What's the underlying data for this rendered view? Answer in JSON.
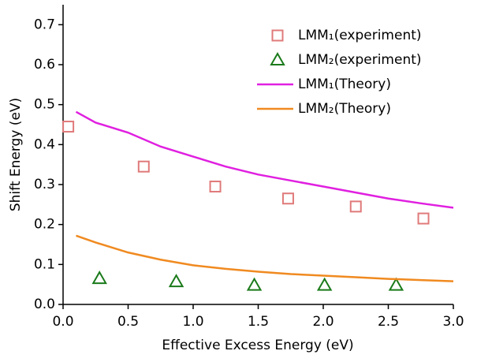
{
  "chart_data": {
    "type": "scatter",
    "xlabel": "Effective Excess Energy (eV)",
    "ylabel": "Shift Energy (eV)",
    "xlim": [
      0,
      3
    ],
    "ylim": [
      0,
      0.75
    ],
    "xticks": [
      {
        "value": 0,
        "label": "0.0"
      },
      0.5,
      {
        "value": 1,
        "label": "1.0"
      },
      1.5,
      {
        "value": 2,
        "label": "2.0"
      },
      2.5,
      {
        "value": 3,
        "label": "3.0"
      }
    ],
    "yticks": [
      {
        "value": 0,
        "label": "0.0"
      },
      0.1,
      0.2,
      0.3,
      0.4,
      0.5,
      0.6,
      0.7
    ],
    "legend": "upper right",
    "series": [
      {
        "name": "LMM₁(experiment)",
        "style": "marker",
        "marker": "square",
        "color": "#e07a7a",
        "x": [
          0.04,
          0.62,
          1.17,
          1.73,
          2.25,
          2.77
        ],
        "values": [
          0.445,
          0.345,
          0.295,
          0.265,
          0.245,
          0.215
        ]
      },
      {
        "name": "LMM₂(experiment)",
        "style": "marker",
        "marker": "triangle",
        "color": "#1a7a1a",
        "x": [
          0.28,
          0.87,
          1.47,
          2.01,
          2.56
        ],
        "values": [
          0.065,
          0.057,
          0.048,
          0.048,
          0.048
        ]
      },
      {
        "name": "LMM₁(Theory)",
        "style": "line",
        "color": "#e020e0",
        "x": [
          0.1,
          0.25,
          0.5,
          0.75,
          1.0,
          1.25,
          1.5,
          1.75,
          2.0,
          2.25,
          2.5,
          2.75,
          3.0
        ],
        "values": [
          0.482,
          0.455,
          0.43,
          0.395,
          0.37,
          0.345,
          0.325,
          0.31,
          0.295,
          0.28,
          0.265,
          0.253,
          0.242
        ]
      },
      {
        "name": "LMM₂(Theory)",
        "style": "line",
        "color": "#f08a20",
        "x": [
          0.1,
          0.25,
          0.5,
          0.75,
          1.0,
          1.25,
          1.5,
          1.75,
          2.0,
          2.25,
          2.5,
          2.75,
          3.0
        ],
        "values": [
          0.172,
          0.155,
          0.13,
          0.112,
          0.098,
          0.089,
          0.082,
          0.076,
          0.072,
          0.068,
          0.064,
          0.061,
          0.058
        ]
      }
    ]
  }
}
